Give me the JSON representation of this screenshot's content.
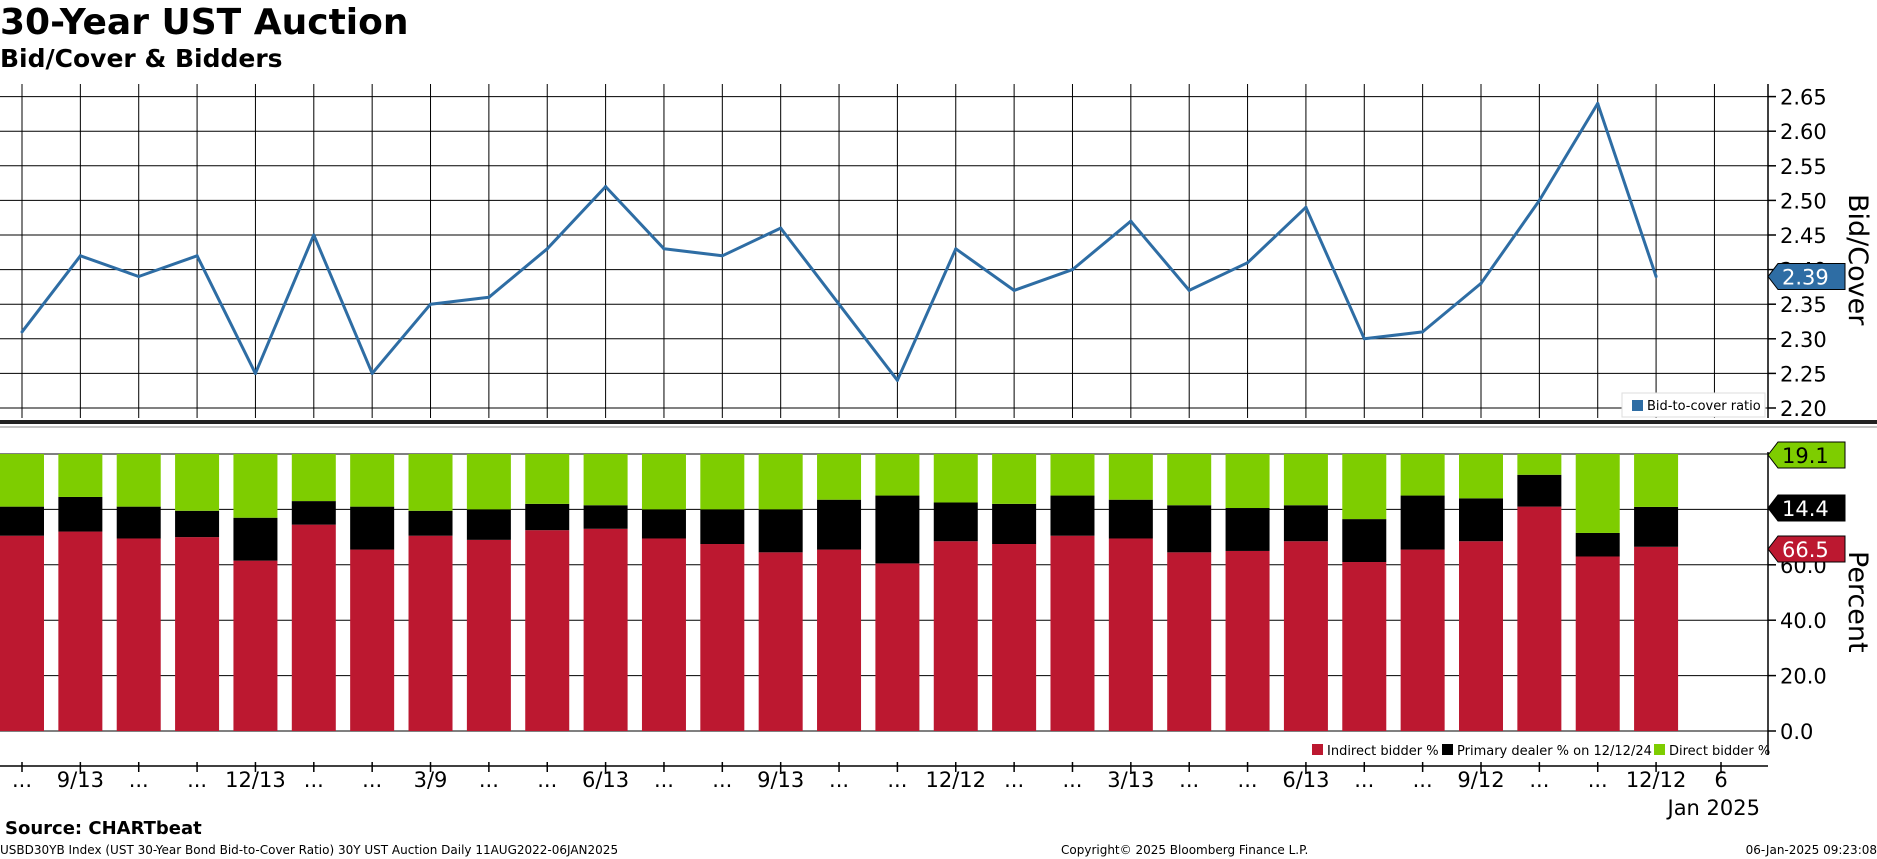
{
  "header": {
    "title": "30-Year UST Auction",
    "subtitle": "Bid/Cover & Bidders"
  },
  "footer": {
    "source": "Source: CHARTbeat",
    "description": "USBD30YB Index (UST 30-Year Bond Bid-to-Cover Ratio) 30Y UST Auction  Daily 11AUG2022-06JAN2025",
    "copyright": "Copyright© 2025 Bloomberg Finance L.P.",
    "timestamp": "06-Jan-2025 09:23:08"
  },
  "colors": {
    "line": "#2e6da4",
    "indirect": "#bc1830",
    "primary": "#000000",
    "direct": "#7ecd00"
  },
  "chart_data": [
    {
      "type": "line",
      "ylabel": "Bid/Cover",
      "ylim": [
        2.2,
        2.65
      ],
      "yticks": [
        "2.20",
        "2.25",
        "2.30",
        "2.35",
        "2.40",
        "2.45",
        "2.50",
        "2.55",
        "2.60",
        "2.65"
      ],
      "grid": true,
      "legend_position": "bottom-right",
      "series": [
        {
          "name": "Bid-to-cover ratio",
          "values": [
            2.31,
            2.42,
            2.39,
            2.42,
            2.25,
            2.45,
            2.25,
            2.35,
            2.36,
            2.43,
            2.52,
            2.43,
            2.42,
            2.46,
            2.35,
            2.24,
            2.43,
            2.37,
            2.4,
            2.47,
            2.37,
            2.41,
            2.49,
            2.3,
            2.31,
            2.38,
            2.5,
            2.64,
            2.39
          ]
        }
      ],
      "last_value_label": "2.39"
    },
    {
      "type": "bar",
      "stacked": true,
      "ylabel": "Percent",
      "ylim": [
        0,
        100
      ],
      "yticks": [
        "0.0",
        "20.0",
        "40.0",
        "60.0"
      ],
      "grid": true,
      "legend_position": "bottom-right",
      "series": [
        {
          "name": "Indirect bidder %",
          "values": [
            70.5,
            72.0,
            69.5,
            70.0,
            61.5,
            74.5,
            65.5,
            70.5,
            69.0,
            72.5,
            73.0,
            69.5,
            67.5,
            64.5,
            65.5,
            60.5,
            68.5,
            67.5,
            70.5,
            69.5,
            64.5,
            65.0,
            68.5,
            61.0,
            65.5,
            68.5,
            81.0,
            63.0,
            66.5
          ]
        },
        {
          "name": "Primary dealer % on 12/12/24",
          "values": [
            10.5,
            12.5,
            11.5,
            9.5,
            15.5,
            8.5,
            15.5,
            9.0,
            11.0,
            9.5,
            8.5,
            10.5,
            12.5,
            15.5,
            18.0,
            24.5,
            14.0,
            14.5,
            14.5,
            14.0,
            17.0,
            15.5,
            13.0,
            15.5,
            19.5,
            15.5,
            11.5,
            8.5,
            14.4
          ]
        },
        {
          "name": "Direct bidder %",
          "values": [
            19.0,
            15.5,
            19.0,
            20.5,
            23.0,
            17.0,
            19.0,
            20.5,
            20.0,
            18.0,
            18.5,
            20.0,
            20.0,
            20.0,
            16.5,
            15.0,
            17.5,
            18.0,
            15.0,
            16.5,
            18.5,
            19.5,
            18.5,
            23.5,
            15.0,
            16.0,
            7.5,
            28.5,
            19.1
          ]
        }
      ],
      "last_value_labels": [
        "19.1",
        "14.4",
        "66.5"
      ]
    }
  ],
  "x_axis": {
    "tick_labels": [
      "...",
      "9/13",
      "...",
      "...",
      "12/13",
      "...",
      "...",
      "3/9",
      "...",
      "...",
      "6/13",
      "...",
      "...",
      "9/13",
      "...",
      "...",
      "12/12",
      "...",
      "...",
      "3/13",
      "...",
      "...",
      "6/13",
      "...",
      "...",
      "9/12",
      "...",
      "...",
      "12/12",
      "6"
    ],
    "period_label": "Jan 2025"
  }
}
